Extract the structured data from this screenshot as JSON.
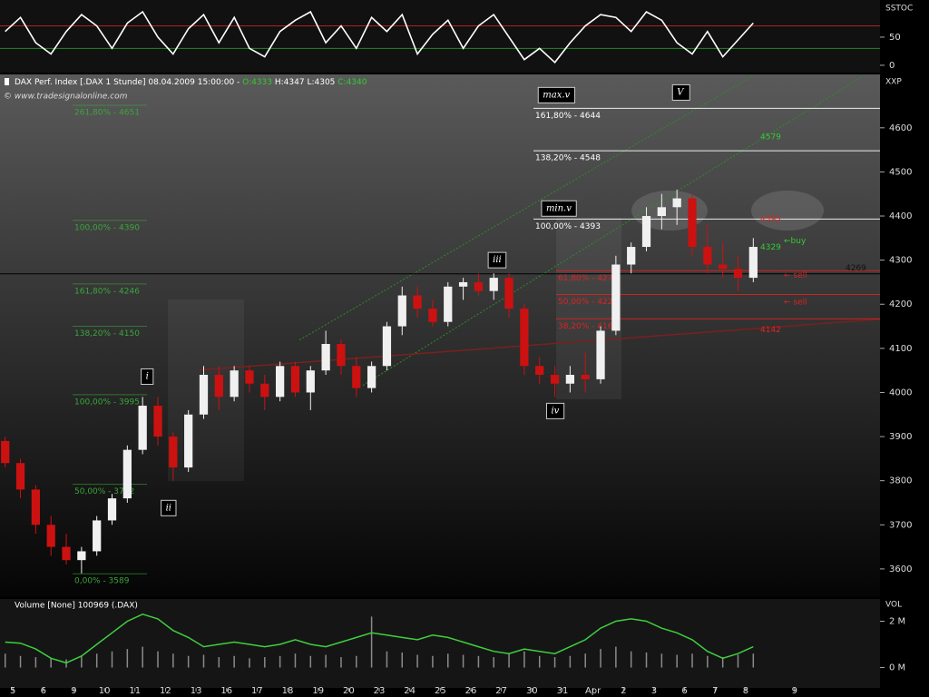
{
  "chart_data": [
    {
      "type": "line",
      "title": "SSTOC",
      "x": [
        -0.25,
        0.25,
        0.75,
        1.25,
        1.75,
        2.25,
        2.75,
        3.25,
        3.75,
        4.25,
        4.75,
        5.25,
        5.75,
        6.25,
        6.75,
        7.25,
        7.75,
        8.25,
        8.75,
        9.25,
        9.75,
        10.25,
        10.75,
        11.25,
        11.75,
        12.25,
        12.75,
        13.25,
        13.75,
        14.25,
        14.75,
        15.25,
        15.75,
        16.25,
        16.75,
        17.25,
        17.75,
        18.25,
        18.75,
        19.25,
        19.75,
        20.25,
        20.75,
        21.25,
        21.75,
        22.25,
        22.75,
        23.25,
        23.75,
        24.25
      ],
      "series": [
        {
          "color": "#ffffff",
          "values": [
            60,
            85,
            40,
            20,
            60,
            90,
            70,
            30,
            75,
            95,
            50,
            20,
            65,
            90,
            40,
            85,
            30,
            15,
            60,
            80,
            95,
            40,
            70,
            30,
            85,
            60,
            90,
            20,
            55,
            80,
            30,
            70,
            90,
            50,
            10,
            30,
            5,
            40,
            70,
            90,
            85,
            60,
            95,
            80,
            40,
            20,
            60,
            15,
            45,
            75
          ]
        }
      ],
      "bands": [
        {
          "value": 70,
          "color": "#b42020"
        },
        {
          "value": 30,
          "color": "#1f8a1f"
        }
      ],
      "xlim": [
        -0.42,
        28.4
      ],
      "ylim": [
        -13,
        116
      ],
      "yticks": [
        50,
        0
      ]
    },
    {
      "type": "candlestick",
      "header": [
        {
          "text": "DAX Perf. Index [.DAX 1 Stunde] 08.04.2009 15:00:00 - ",
          "color": "#ffffff"
        },
        {
          "text": "O:4333",
          "color": "#33cc33"
        },
        {
          "text": " H:4347 L:4305 ",
          "color": "#ffffff"
        },
        {
          "text": "C:4340",
          "color": "#33cc33"
        }
      ],
      "credit": "© www.tradesignalonline.com",
      "axis_label": "XXP",
      "x": [
        -0.25,
        0.25,
        0.75,
        1.25,
        1.75,
        2.25,
        2.75,
        3.25,
        3.75,
        4.25,
        4.75,
        5.25,
        5.75,
        6.25,
        6.75,
        7.25,
        7.75,
        8.25,
        8.75,
        9.25,
        9.75,
        10.25,
        10.75,
        11.25,
        11.75,
        12.25,
        12.75,
        13.25,
        13.75,
        14.25,
        14.75,
        15.25,
        15.75,
        16.25,
        16.75,
        17.25,
        17.75,
        18.25,
        18.75,
        19.25,
        19.75,
        20.25,
        20.75,
        21.25,
        21.75,
        22.25,
        22.75,
        23.25,
        23.75,
        24.25
      ],
      "open": [
        3890,
        3840,
        3780,
        3700,
        3650,
        3620,
        3640,
        3710,
        3760,
        3870,
        3970,
        3900,
        3830,
        3950,
        4040,
        3990,
        4050,
        4020,
        3990,
        4060,
        4000,
        4050,
        4110,
        4060,
        4010,
        4060,
        4150,
        4220,
        4190,
        4160,
        4240,
        4250,
        4230,
        4260,
        4190,
        4060,
        4040,
        4020,
        4040,
        4030,
        4140,
        4290,
        4330,
        4400,
        4420,
        4440,
        4330,
        4290,
        4280,
        4260
      ],
      "high": [
        3900,
        3850,
        3790,
        3720,
        3680,
        3650,
        3720,
        3770,
        3880,
        3990,
        3990,
        3910,
        3960,
        4060,
        4060,
        4060,
        4060,
        4040,
        4070,
        4070,
        4060,
        4140,
        4120,
        4080,
        4070,
        4160,
        4240,
        4240,
        4210,
        4250,
        4260,
        4270,
        4270,
        4270,
        4200,
        4080,
        4060,
        4060,
        4090,
        4150,
        4310,
        4340,
        4420,
        4450,
        4460,
        4450,
        4380,
        4340,
        4310,
        4350
      ],
      "low": [
        3830,
        3760,
        3680,
        3630,
        3610,
        3590,
        3630,
        3700,
        3750,
        3860,
        3880,
        3800,
        3820,
        3940,
        3960,
        3980,
        4000,
        3960,
        3980,
        3990,
        3960,
        4040,
        4040,
        3990,
        4000,
        4050,
        4130,
        4170,
        4150,
        4150,
        4210,
        4220,
        4210,
        4170,
        4040,
        4020,
        3990,
        4000,
        4000,
        4020,
        4130,
        4270,
        4320,
        4370,
        4380,
        4310,
        4270,
        4260,
        4230,
        4250
      ],
      "close": [
        3840,
        3780,
        3700,
        3650,
        3620,
        3640,
        3710,
        3760,
        3870,
        3970,
        3900,
        3830,
        3950,
        4040,
        3990,
        4050,
        4020,
        3990,
        4060,
        4000,
        4050,
        4110,
        4060,
        4010,
        4060,
        4150,
        4220,
        4190,
        4160,
        4240,
        4250,
        4230,
        4260,
        4190,
        4060,
        4040,
        4020,
        4040,
        4030,
        4140,
        4290,
        4330,
        4400,
        4420,
        4440,
        4330,
        4290,
        4280,
        4260,
        4330
      ],
      "up_color": "#f0f0f0",
      "down_color": "#cc1111",
      "xlim": [
        -0.42,
        28.4
      ],
      "ylim": [
        3536,
        4721
      ],
      "yticks": [
        3600,
        3700,
        3800,
        3900,
        4000,
        4100,
        4200,
        4300,
        4400,
        4500,
        4600
      ],
      "fib_left": [
        {
          "label": "261,80% - 4651",
          "value": 4651
        },
        {
          "label": "100,00% - 4390",
          "value": 4390
        },
        {
          "label": "161,80% - 4246",
          "value": 4246
        },
        {
          "label": "138,20% - 4150",
          "value": 4150
        },
        {
          "label": "100,00% - 3995",
          "value": 3995
        },
        {
          "label": "50,00% - 3792",
          "value": 3792
        },
        {
          "label": "0,00% - 3589",
          "value": 3589
        }
      ],
      "fib_left_color": "#3aa53a",
      "fib_right": [
        {
          "label": "161,80% - 4644",
          "value": 4644
        },
        {
          "label": "138,20% - 4548",
          "value": 4548
        },
        {
          "label": "100,00% - 4393",
          "value": 4393
        }
      ],
      "fib_right_color": "#ffffff",
      "fib_red": [
        {
          "label": "61,80% - 4276",
          "value": 4276
        },
        {
          "label": "50,00% - 4222",
          "value": 4222
        },
        {
          "label": "38,20% - 4167",
          "value": 4167
        }
      ],
      "fib_red_color": "#dd2222",
      "notes": [
        {
          "text": "4579",
          "value": 4579,
          "color": "#33cc33"
        },
        {
          "text": "4393",
          "value": 4393,
          "color": "#dd2222"
        },
        {
          "text": "←buy",
          "value": 4343,
          "color": "#33cc33"
        },
        {
          "text": "4329",
          "value": 4329,
          "color": "#33cc33"
        },
        {
          "text": "4269",
          "value": 4269,
          "color": "#111111",
          "line": true
        },
        {
          "text": "← sell",
          "value": 4265,
          "color": "#dd2222"
        },
        {
          "text": "← sell",
          "value": 4205,
          "color": "#dd2222"
        },
        {
          "text": "4142",
          "value": 4142,
          "color": "#dd2222"
        }
      ],
      "waves": [
        {
          "text": "max.v",
          "x": 17.8,
          "value": 4674
        },
        {
          "text": "V",
          "x": 21.86,
          "value": 4680
        },
        {
          "text": "min.v",
          "x": 17.88,
          "value": 4417
        },
        {
          "text": "iii",
          "x": 15.86,
          "value": 4300
        },
        {
          "text": "i",
          "x": 4.4,
          "value": 4036
        },
        {
          "text": "ii",
          "x": 5.1,
          "value": 3738
        },
        {
          "text": "iv",
          "x": 17.76,
          "value": 3958
        }
      ],
      "trendlines": [
        {
          "x": [
            9.39,
            24.23
          ],
          "values": [
            4119,
            4717
          ],
          "color": "#2e8b2e",
          "dash": true
        },
        {
          "x": [
            11.46,
            27.8
          ],
          "values": [
            4016,
            4715
          ],
          "color": "#2e8b2e",
          "dash": true
        },
        {
          "x": [
            6.12,
            28.39
          ],
          "values": [
            4051,
            4166
          ],
          "color": "#7a2020",
          "dash": false
        }
      ]
    },
    {
      "type": "bar",
      "title": "Volume [None] 100969 (.DAX)",
      "axis_label": "VOL",
      "x": [
        -0.25,
        0.25,
        0.75,
        1.25,
        1.75,
        2.25,
        2.75,
        3.25,
        3.75,
        4.25,
        4.75,
        5.25,
        5.75,
        6.25,
        6.75,
        7.25,
        7.75,
        8.25,
        8.75,
        9.25,
        9.75,
        10.25,
        10.75,
        11.25,
        11.75,
        12.25,
        12.75,
        13.25,
        13.75,
        14.25,
        14.75,
        15.25,
        15.75,
        16.25,
        16.75,
        17.25,
        17.75,
        18.25,
        18.75,
        19.25,
        19.75,
        20.25,
        20.75,
        21.25,
        21.75,
        22.25,
        22.75,
        23.25,
        23.75,
        24.25
      ],
      "values": [
        600000,
        500000,
        450000,
        400000,
        350000,
        500000,
        600000,
        700000,
        800000,
        900000,
        700000,
        600000,
        500000,
        550000,
        450000,
        500000,
        400000,
        450000,
        500000,
        600000,
        500000,
        550000,
        450000,
        500000,
        2200000,
        700000,
        650000,
        550000,
        500000,
        600000,
        550000,
        500000,
        450000,
        600000,
        700000,
        500000,
        450000,
        500000,
        600000,
        800000,
        900000,
        700000,
        650000,
        600000,
        550000,
        600000,
        500000,
        450000,
        550000,
        600000
      ],
      "color": "#8a8a8a",
      "series": [
        {
          "color": "#3ecf3e",
          "values": [
            1100000,
            1050000,
            800000,
            400000,
            200000,
            500000,
            1000000,
            1500000,
            2000000,
            2300000,
            2100000,
            1600000,
            1300000,
            900000,
            1000000,
            1100000,
            1000000,
            900000,
            1000000,
            1200000,
            1000000,
            900000,
            1100000,
            1300000,
            1500000,
            1400000,
            1300000,
            1200000,
            1400000,
            1300000,
            1100000,
            900000,
            700000,
            600000,
            800000,
            700000,
            600000,
            900000,
            1200000,
            1700000,
            2000000,
            2100000,
            2000000,
            1700000,
            1500000,
            1200000,
            700000,
            400000,
            600000,
            900000
          ]
        }
      ],
      "xlim": [
        -0.42,
        28.4
      ],
      "ylim": [
        -880000,
        2960000
      ],
      "yticks": [
        {
          "value": 2000000,
          "label": "2 M"
        },
        {
          "value": 0,
          "label": "0 M"
        }
      ],
      "xticks": [
        {
          "value": 0,
          "label": "5"
        },
        {
          "value": 1,
          "label": "6"
        },
        {
          "value": 2,
          "label": "9"
        },
        {
          "value": 3,
          "label": "10"
        },
        {
          "value": 4,
          "label": "11"
        },
        {
          "value": 5,
          "label": "12"
        },
        {
          "value": 6,
          "label": "13"
        },
        {
          "value": 7,
          "label": "16"
        },
        {
          "value": 8,
          "label": "17"
        },
        {
          "value": 9,
          "label": "18"
        },
        {
          "value": 10,
          "label": "19"
        },
        {
          "value": 11,
          "label": "20"
        },
        {
          "value": 12,
          "label": "23"
        },
        {
          "value": 13,
          "label": "24"
        },
        {
          "value": 14,
          "label": "25"
        },
        {
          "value": 15,
          "label": "26"
        },
        {
          "value": 16,
          "label": "27"
        },
        {
          "value": 17,
          "label": "30"
        },
        {
          "value": 18,
          "label": "31"
        },
        {
          "value": 19,
          "label": "Apr"
        },
        {
          "value": 20,
          "label": "2"
        },
        {
          "value": 21,
          "label": "3"
        },
        {
          "value": 22,
          "label": "6"
        },
        {
          "value": 23,
          "label": "7"
        },
        {
          "value": 24,
          "label": "8"
        },
        {
          "value": 25.6,
          "label": "9"
        }
      ]
    }
  ]
}
